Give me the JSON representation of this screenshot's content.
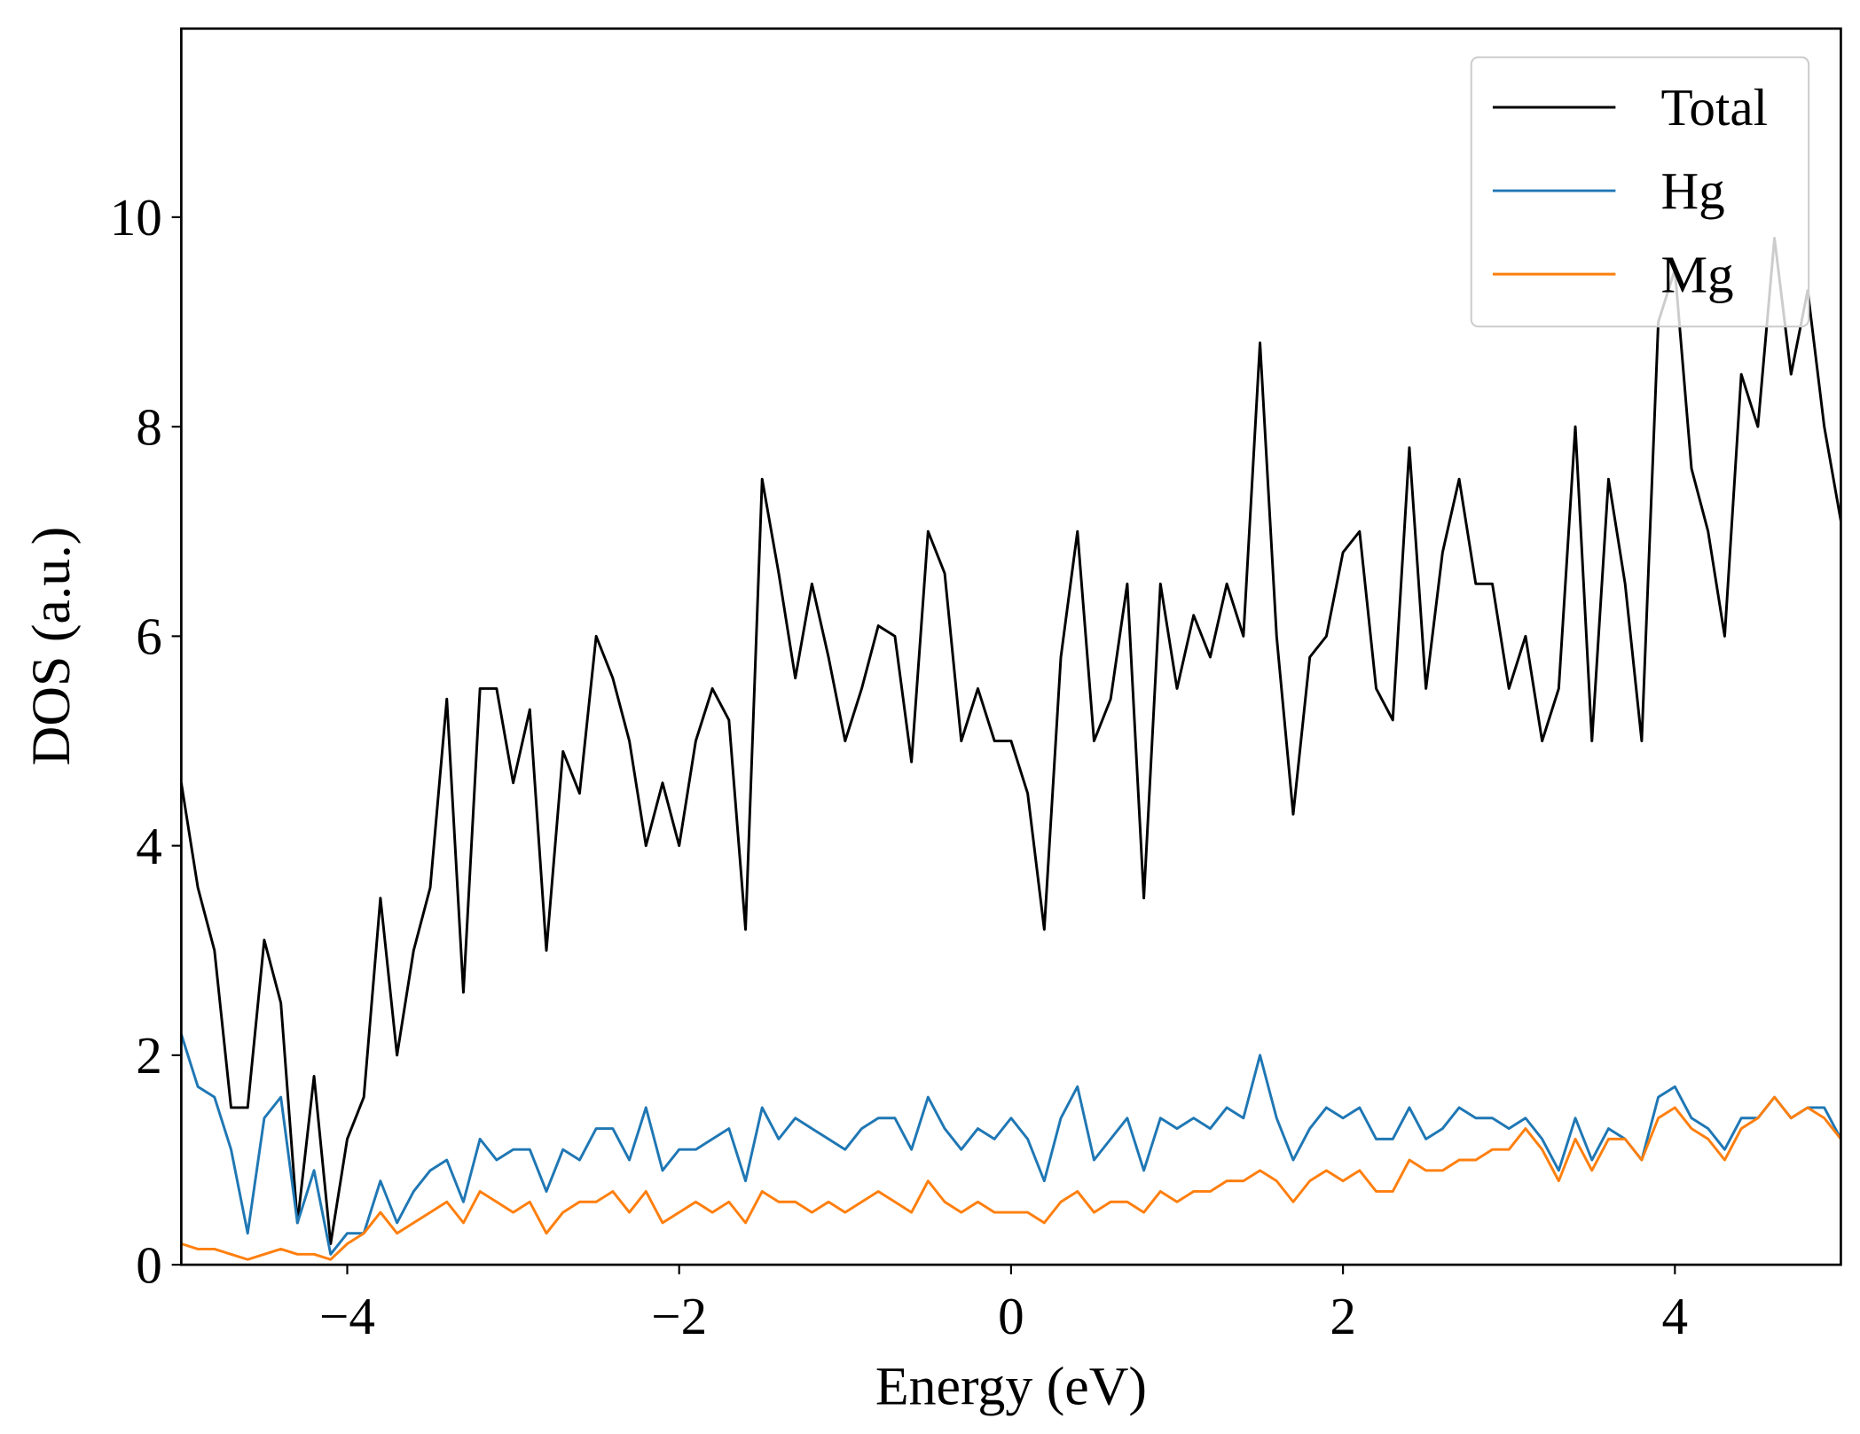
{
  "chart_data": {
    "type": "line",
    "xlabel": "Energy (eV)",
    "ylabel": "DOS (a.u.)",
    "xlim": [
      -5,
      5
    ],
    "ylim": [
      0,
      11.8
    ],
    "xticks": [
      {
        "value": -4,
        "label": "−4"
      },
      {
        "value": -2,
        "label": "−2"
      },
      0,
      2,
      4
    ],
    "yticks": [
      0,
      2,
      4,
      6,
      8,
      10
    ],
    "legend": "upper right",
    "x": [
      -5.0,
      -4.9,
      -4.8,
      -4.7,
      -4.6,
      -4.5,
      -4.4,
      -4.3,
      -4.2,
      -4.1,
      -4.0,
      -3.9,
      -3.8,
      -3.7,
      -3.6,
      -3.5,
      -3.4,
      -3.3,
      -3.2,
      -3.1,
      -3.0,
      -2.9,
      -2.8,
      -2.7,
      -2.6,
      -2.5,
      -2.4,
      -2.3,
      -2.2,
      -2.1,
      -2.0,
      -1.9,
      -1.8,
      -1.7,
      -1.6,
      -1.5,
      -1.4,
      -1.3,
      -1.2,
      -1.1,
      -1.0,
      -0.9,
      -0.8,
      -0.7,
      -0.6,
      -0.5,
      -0.4,
      -0.3,
      -0.2,
      -0.1,
      0.0,
      0.1,
      0.2,
      0.3,
      0.4,
      0.5,
      0.6,
      0.7,
      0.8,
      0.9,
      1.0,
      1.1,
      1.2,
      1.3,
      1.4,
      1.5,
      1.6,
      1.7,
      1.8,
      1.9,
      2.0,
      2.1,
      2.2,
      2.3,
      2.4,
      2.5,
      2.6,
      2.7,
      2.8,
      2.9,
      3.0,
      3.1,
      3.2,
      3.3,
      3.4,
      3.5,
      3.6,
      3.7,
      3.8,
      3.9,
      4.0,
      4.1,
      4.2,
      4.3,
      4.4,
      4.5,
      4.6,
      4.7,
      4.8,
      4.9,
      5.0
    ],
    "series": [
      {
        "name": "Total",
        "color": "#000000",
        "values": [
          4.6,
          3.6,
          3.0,
          1.5,
          1.5,
          3.1,
          2.5,
          0.4,
          1.8,
          0.2,
          1.2,
          1.6,
          3.5,
          2.0,
          3.0,
          3.6,
          5.4,
          2.6,
          5.5,
          5.5,
          4.6,
          5.3,
          3.0,
          4.9,
          4.5,
          6.0,
          5.6,
          5.0,
          4.0,
          4.6,
          4.0,
          5.0,
          5.5,
          5.2,
          3.2,
          7.5,
          6.6,
          5.6,
          6.5,
          5.8,
          5.0,
          5.5,
          6.1,
          6.0,
          4.8,
          7.0,
          6.6,
          5.0,
          5.5,
          5.0,
          5.0,
          4.5,
          3.2,
          5.8,
          7.0,
          5.0,
          5.4,
          6.5,
          3.5,
          6.5,
          5.5,
          6.2,
          5.8,
          6.5,
          6.0,
          8.8,
          6.0,
          4.3,
          5.8,
          6.0,
          6.8,
          7.0,
          5.5,
          5.2,
          7.8,
          5.5,
          6.8,
          7.5,
          6.5,
          6.5,
          5.5,
          6.0,
          5.0,
          5.5,
          8.0,
          5.0,
          7.5,
          6.5,
          5.0,
          9.0,
          9.5,
          7.6,
          7.0,
          6.0,
          8.5,
          8.0,
          9.8,
          8.5,
          9.3,
          8.0,
          7.1
        ]
      },
      {
        "name": "Hg",
        "color": "#1f77b4",
        "values": [
          2.2,
          1.7,
          1.6,
          1.1,
          0.3,
          1.4,
          1.6,
          0.4,
          0.9,
          0.1,
          0.3,
          0.3,
          0.8,
          0.4,
          0.7,
          0.9,
          1.0,
          0.6,
          1.2,
          1.0,
          1.1,
          1.1,
          0.7,
          1.1,
          1.0,
          1.3,
          1.3,
          1.0,
          1.5,
          0.9,
          1.1,
          1.1,
          1.2,
          1.3,
          0.8,
          1.5,
          1.2,
          1.4,
          1.3,
          1.2,
          1.1,
          1.3,
          1.4,
          1.4,
          1.1,
          1.6,
          1.3,
          1.1,
          1.3,
          1.2,
          1.4,
          1.2,
          0.8,
          1.4,
          1.7,
          1.0,
          1.2,
          1.4,
          0.9,
          1.4,
          1.3,
          1.4,
          1.3,
          1.5,
          1.4,
          2.0,
          1.4,
          1.0,
          1.3,
          1.5,
          1.4,
          1.5,
          1.2,
          1.2,
          1.5,
          1.2,
          1.3,
          1.5,
          1.4,
          1.4,
          1.3,
          1.4,
          1.2,
          0.9,
          1.4,
          1.0,
          1.3,
          1.2,
          1.0,
          1.6,
          1.7,
          1.4,
          1.3,
          1.1,
          1.4,
          1.4,
          1.6,
          1.4,
          1.5,
          1.5,
          1.2
        ]
      },
      {
        "name": "Mg",
        "color": "#ff7f0e",
        "values": [
          0.2,
          0.15,
          0.15,
          0.1,
          0.05,
          0.1,
          0.15,
          0.1,
          0.1,
          0.05,
          0.2,
          0.3,
          0.5,
          0.3,
          0.4,
          0.5,
          0.6,
          0.4,
          0.7,
          0.6,
          0.5,
          0.6,
          0.3,
          0.5,
          0.6,
          0.6,
          0.7,
          0.5,
          0.7,
          0.4,
          0.5,
          0.6,
          0.5,
          0.6,
          0.4,
          0.7,
          0.6,
          0.6,
          0.5,
          0.6,
          0.5,
          0.6,
          0.7,
          0.6,
          0.5,
          0.8,
          0.6,
          0.5,
          0.6,
          0.5,
          0.5,
          0.5,
          0.4,
          0.6,
          0.7,
          0.5,
          0.6,
          0.6,
          0.5,
          0.7,
          0.6,
          0.7,
          0.7,
          0.8,
          0.8,
          0.9,
          0.8,
          0.6,
          0.8,
          0.9,
          0.8,
          0.9,
          0.7,
          0.7,
          1.0,
          0.9,
          0.9,
          1.0,
          1.0,
          1.1,
          1.1,
          1.3,
          1.1,
          0.8,
          1.2,
          0.9,
          1.2,
          1.2,
          1.0,
          1.4,
          1.5,
          1.3,
          1.2,
          1.0,
          1.3,
          1.4,
          1.6,
          1.4,
          1.5,
          1.4,
          1.2
        ]
      }
    ]
  }
}
